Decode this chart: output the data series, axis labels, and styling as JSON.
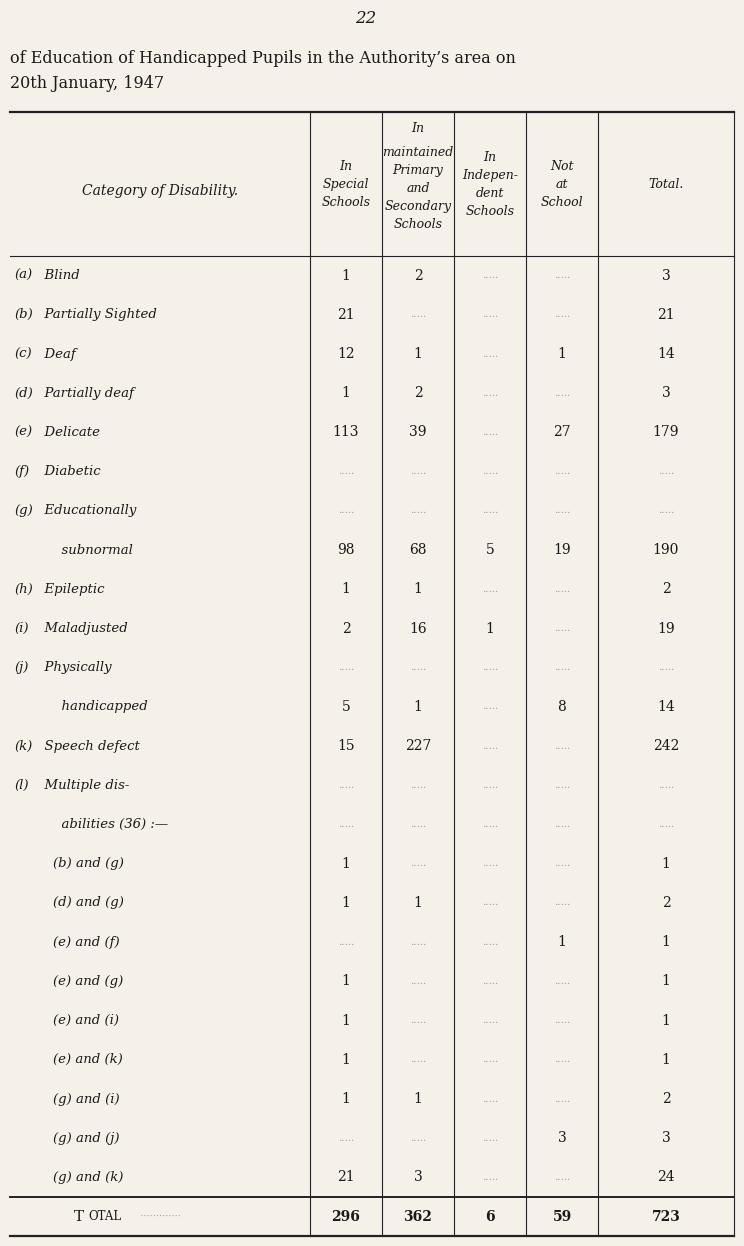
{
  "page_number": "22",
  "title_line1": "of Education of Handicapped Pupils in the Authority’s area on",
  "title_line2": "20th January, 1947",
  "background_color": "#f5f0e8",
  "text_color": "#1a1a1a",
  "row_label_header": "Category of Disability.",
  "col_header_texts": [
    "In\nSpecial\nSchools",
    "In\nmaintained\nPrimary\nand\nSecondary\nSchools",
    "In\nIndepen-\ndent\nSchools",
    "Not\nat\nSchool",
    "Total."
  ],
  "rows": [
    {
      "label_parts": [
        [
          "(a)",
          "  Blind "
        ],
        []
      ],
      "vals": [
        "1",
        "2",
        "",
        "",
        "3"
      ]
    },
    {
      "label_parts": [
        [
          "(b)",
          "  Partially Sighted "
        ],
        []
      ],
      "vals": [
        "21",
        "",
        "",
        "",
        "21"
      ]
    },
    {
      "label_parts": [
        [
          "(c)",
          "  Deaf "
        ],
        []
      ],
      "vals": [
        "12",
        "1",
        "",
        "1",
        "14"
      ]
    },
    {
      "label_parts": [
        [
          "(d)",
          "  Partially deaf"
        ],
        []
      ],
      "vals": [
        "1",
        "2",
        "",
        "",
        "3"
      ]
    },
    {
      "label_parts": [
        [
          "(e)",
          "  Delicate "
        ],
        []
      ],
      "vals": [
        "113",
        "39",
        "",
        "27",
        "179"
      ]
    },
    {
      "label_parts": [
        [
          "(f)",
          "  Diabetic "
        ],
        []
      ],
      "vals": [
        "",
        "",
        "",
        "",
        ""
      ]
    },
    {
      "label_parts": [
        [
          "(g)",
          "  Educationally"
        ],
        []
      ],
      "vals": [
        "",
        "",
        "",
        "",
        ""
      ],
      "continued": true
    },
    {
      "label_parts": [
        [
          "",
          "      subnormal "
        ],
        []
      ],
      "vals": [
        "98",
        "68",
        "5",
        "19",
        "190"
      ],
      "sub": true
    },
    {
      "label_parts": [
        [
          "(h)",
          "  Epileptic "
        ],
        []
      ],
      "vals": [
        "1",
        "1",
        "",
        "",
        "2"
      ]
    },
    {
      "label_parts": [
        [
          "(i)",
          "  Maladjusted "
        ],
        []
      ],
      "vals": [
        "2",
        "16",
        "1",
        "",
        "19"
      ]
    },
    {
      "label_parts": [
        [
          "(j)",
          "  Physically"
        ],
        []
      ],
      "vals": [
        "",
        "",
        "",
        "",
        ""
      ],
      "continued": true
    },
    {
      "label_parts": [
        [
          "",
          "      handicapped "
        ],
        []
      ],
      "vals": [
        "5",
        "1",
        "",
        "8",
        "14"
      ],
      "sub": true
    },
    {
      "label_parts": [
        [
          "(k)",
          "  Speech defect "
        ],
        []
      ],
      "vals": [
        "15",
        "227",
        "",
        "",
        "242"
      ]
    },
    {
      "label_parts": [
        [
          "(l)",
          "  Multiple dis-"
        ],
        []
      ],
      "vals": [
        "",
        "",
        "",
        "",
        ""
      ],
      "continued": true
    },
    {
      "label_parts": [
        [
          "",
          "      abilities (36) :—"
        ],
        []
      ],
      "vals": [
        "",
        "",
        "",
        "",
        ""
      ],
      "sub": true
    },
    {
      "label_parts": [
        [
          "",
          "    (b) and (g) "
        ],
        []
      ],
      "vals": [
        "1",
        "",
        "",
        "",
        "1"
      ],
      "sub2": true
    },
    {
      "label_parts": [
        [
          "",
          "    (d) and (g) "
        ],
        []
      ],
      "vals": [
        "1",
        "1",
        "",
        "",
        "2"
      ],
      "sub2": true
    },
    {
      "label_parts": [
        [
          "",
          "    (e) and (f) "
        ],
        []
      ],
      "vals": [
        "",
        "",
        "",
        "1",
        "1"
      ],
      "sub2": true
    },
    {
      "label_parts": [
        [
          "",
          "    (e) and (g) "
        ],
        []
      ],
      "vals": [
        "1",
        "",
        "",
        "",
        "1"
      ],
      "sub2": true
    },
    {
      "label_parts": [
        [
          "",
          "    (e) and (i) "
        ],
        []
      ],
      "vals": [
        "1",
        "",
        "",
        "",
        "1"
      ],
      "sub2": true
    },
    {
      "label_parts": [
        [
          "",
          "    (e) and (k) "
        ],
        []
      ],
      "vals": [
        "1",
        "",
        "",
        "",
        "1"
      ],
      "sub2": true
    },
    {
      "label_parts": [
        [
          "",
          "    (g) and (i) "
        ],
        []
      ],
      "vals": [
        "1",
        "1",
        "",
        "",
        "2"
      ],
      "sub2": true
    },
    {
      "label_parts": [
        [
          "",
          "    (g) and (j) "
        ],
        []
      ],
      "vals": [
        "",
        "",
        "",
        "3",
        "3"
      ],
      "sub2": true
    },
    {
      "label_parts": [
        [
          "",
          "    (g) and (k) "
        ],
        []
      ],
      "vals": [
        "21",
        "3",
        "",
        "",
        "24"
      ],
      "sub2": true
    },
    {
      "label_parts": [
        [
          "Total",
          ""
        ],
        []
      ],
      "vals": [
        "296",
        "362",
        "6",
        "59",
        "723"
      ],
      "is_total": true
    }
  ],
  "dot_color": "#999999",
  "line_color": "#222222"
}
